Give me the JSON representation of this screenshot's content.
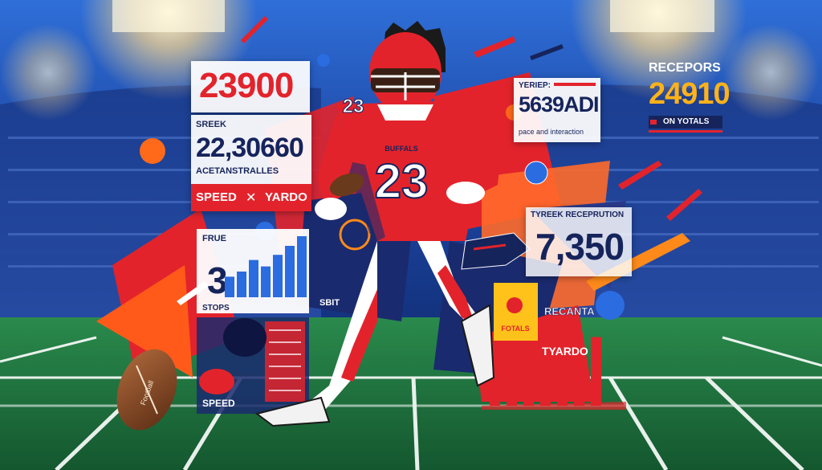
{
  "colors": {
    "red": "#e3232b",
    "navy": "#16245c",
    "orange": "#ff7a1a",
    "field": "#1f6d3f",
    "blue": "#2b6ce0"
  },
  "stat_top_left": {
    "value": "23900"
  },
  "stat_left": {
    "label": "SREEK",
    "value": "22,30660",
    "sub": "ACETANSTRALLES",
    "speed": "SPEED",
    "yardo": "YARDO"
  },
  "bar_panel": {
    "label": "FRUE",
    "number": "3",
    "footer": "STOPS",
    "values": [
      0.32,
      0.4,
      0.58,
      0.48,
      0.66,
      0.8,
      0.95
    ]
  },
  "helmet_panel": {
    "label": "SPEED"
  },
  "stat_center_right": {
    "label": "YERIEP:",
    "value": "5639ADI",
    "sub": "pace and interaction"
  },
  "stat_top_right": {
    "label": "RECEPORS",
    "value": "24910",
    "sub": "ON YOTALS"
  },
  "reception_panel": {
    "label": "TYREEK RECEPRUTION",
    "value": "7,350"
  },
  "badge": {
    "label": "FOTALS"
  },
  "recanta": {
    "label": "RECANTA"
  },
  "tyardo": {
    "label": "TYARDO"
  },
  "sbit": {
    "label": "SBIT"
  },
  "jersey": {
    "number": "23",
    "team": "BUFFALS"
  },
  "football_text": {
    "label": "Football"
  },
  "right_bars": {
    "values": [
      0.25,
      0.38,
      0.42,
      0.55,
      0.68,
      0.8,
      0.95
    ]
  }
}
